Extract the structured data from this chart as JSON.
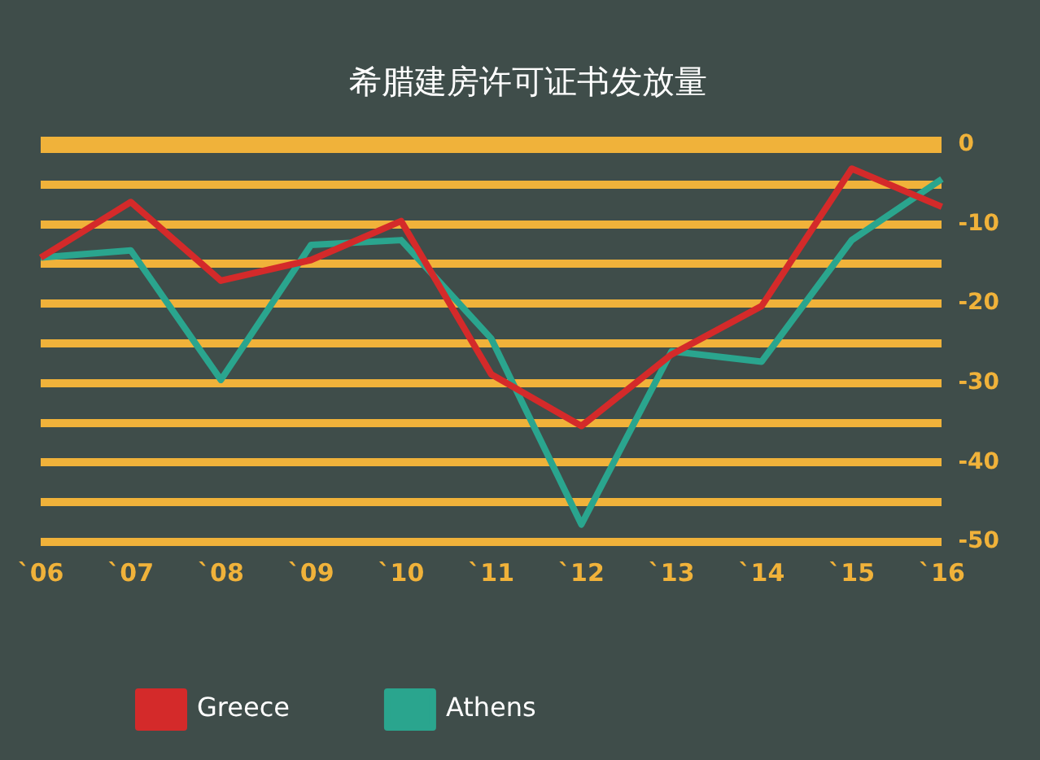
{
  "chart_data": {
    "type": "line",
    "title": "希腊建房许可证书发放量",
    "categories": [
      "`06",
      "`07",
      "`08",
      "`09",
      "`10",
      "`11",
      "`12",
      "`13",
      "`14",
      "`15",
      "`16"
    ],
    "series": [
      {
        "name": "Greece",
        "color": "#d42a2a",
        "values": [
          -14.2,
          -7.2,
          -17.1,
          -14.5,
          -9.6,
          -28.9,
          -35.4,
          -26.4,
          -20.3,
          -3,
          -7.8
        ]
      },
      {
        "name": "Athens",
        "color": "#2aa58e",
        "values": [
          -14.2,
          -13.3,
          -29.6,
          -12.6,
          -12,
          -24.4,
          -47.8,
          -26,
          -27.3,
          -12,
          -4.3
        ]
      }
    ],
    "ylim": [
      -50,
      0
    ],
    "yticks": [
      -50,
      {
        "value": -45,
        "label": null
      },
      -40,
      {
        "value": -35,
        "label": null
      },
      -30,
      {
        "value": -25,
        "label": null
      },
      -20,
      {
        "value": -15,
        "label": null
      },
      -10,
      {
        "value": -5,
        "label": null
      },
      0
    ],
    "grid": "y",
    "legend": "bottom left",
    "marker": "none",
    "line_style": "solid"
  }
}
